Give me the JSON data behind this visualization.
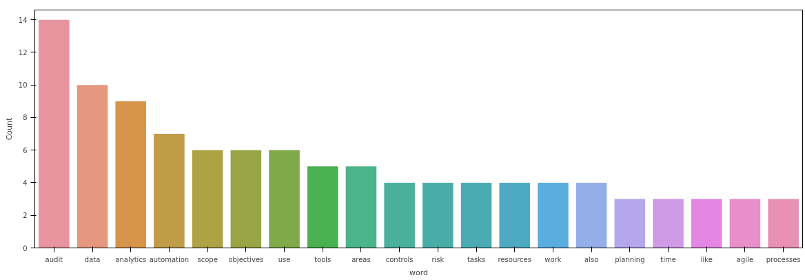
{
  "chart_data": {
    "type": "bar",
    "xlabel": "word",
    "ylabel": "Count",
    "categories": [
      "audit",
      "data",
      "analytics",
      "automation",
      "scope",
      "objectives",
      "use",
      "tools",
      "areas",
      "controls",
      "risk",
      "tasks",
      "resources",
      "work",
      "also",
      "planning",
      "time",
      "like",
      "agile",
      "processes"
    ],
    "values": [
      14,
      10,
      9,
      7,
      6,
      6,
      6,
      5,
      5,
      4,
      4,
      4,
      4,
      4,
      4,
      3,
      3,
      3,
      3,
      3
    ],
    "colors": [
      "#e8949f",
      "#e6977f",
      "#d6954a",
      "#c09b48",
      "#aea244",
      "#98a445",
      "#80a94a",
      "#4ab150",
      "#4cb48a",
      "#4ab09c",
      "#4aaca7",
      "#4aacb2",
      "#4eaac2",
      "#5aaddf",
      "#93aee8",
      "#b4a7ec",
      "#cf9ae6",
      "#e486e3",
      "#e88ec8",
      "#e891b4"
    ],
    "ylim": [
      0,
      14.6
    ],
    "yticks": [
      0,
      2,
      4,
      6,
      8,
      10,
      12,
      14
    ],
    "grid": false
  }
}
